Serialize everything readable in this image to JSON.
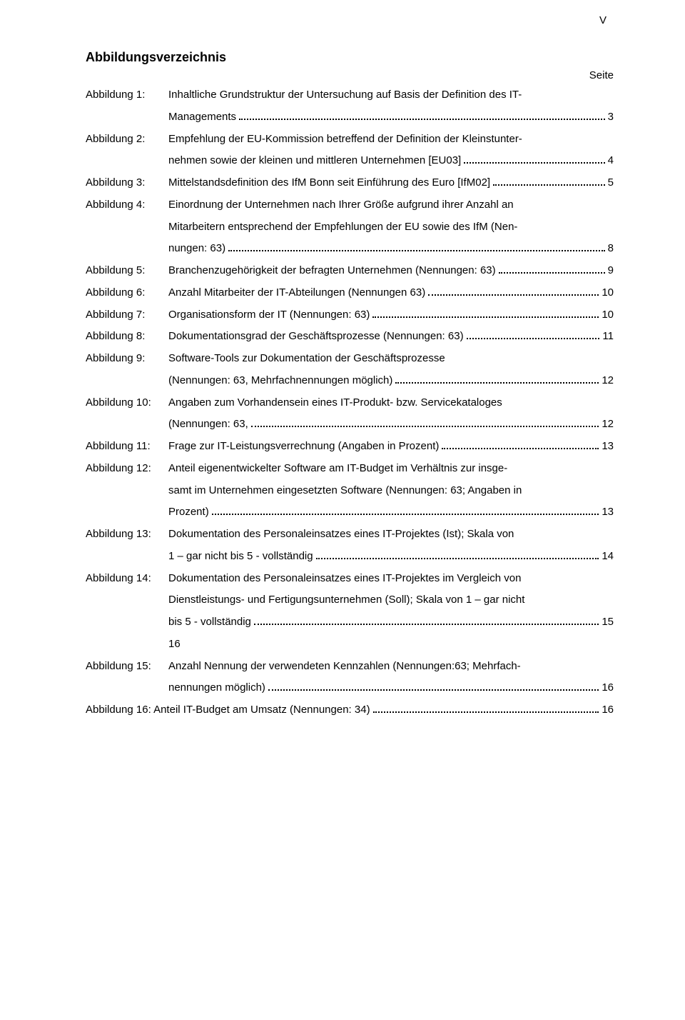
{
  "page_number_label": "V",
  "heading": "Abbildungsverzeichnis",
  "seite_label": "Seite",
  "entries": [
    {
      "label": "Abbildung 1:",
      "lines": [
        "Inhaltliche Grundstruktur der Untersuchung auf Basis der Definition des IT-"
      ],
      "last_text": "Managements",
      "page": "3"
    },
    {
      "label": "Abbildung 2:",
      "lines": [
        "Empfehlung der EU-Kommission betreffend der Definition der Kleinstunter-"
      ],
      "last_text": "nehmen sowie der kleinen und mittleren Unternehmen [EU03]",
      "page": "4"
    },
    {
      "label": "Abbildung 3:",
      "lines": [],
      "last_text": "Mittelstandsdefinition des IfM Bonn seit Einführung des Euro [IfM02]",
      "page": "5"
    },
    {
      "label": "Abbildung 4:",
      "lines": [
        "Einordnung der Unternehmen nach Ihrer Größe aufgrund ihrer Anzahl an",
        "Mitarbeitern entsprechend der Empfehlungen der EU sowie des IfM (Nen-"
      ],
      "last_text": "nungen: 63)",
      "page": "8"
    },
    {
      "label": "Abbildung 5:",
      "lines": [],
      "last_text": "Branchenzugehörigkeit der befragten Unternehmen (Nennungen: 63)",
      "page": "9"
    },
    {
      "label": "Abbildung 6:",
      "lines": [],
      "last_text": "Anzahl Mitarbeiter der IT-Abteilungen (Nennungen  63)",
      "page": "10"
    },
    {
      "label": "Abbildung 7:",
      "lines": [],
      "last_text": "Organisationsform der IT (Nennungen: 63)",
      "page": "10"
    },
    {
      "label": "Abbildung 8:",
      "lines": [],
      "last_text": "Dokumentationsgrad der Geschäftsprozesse (Nennungen: 63)",
      "page": "11"
    },
    {
      "label": "Abbildung 9:",
      "lines": [
        "Software-Tools zur Dokumentation der Geschäftsprozesse"
      ],
      "last_text": "(Nennungen: 63, Mehrfachnennungen möglich)",
      "page": "12"
    },
    {
      "label": "Abbildung 10:",
      "lines": [
        "Angaben zum Vorhandensein eines IT-Produkt- bzw. Servicekataloges"
      ],
      "last_text": "(Nennungen: 63,",
      "page": "12"
    },
    {
      "label": "Abbildung 11:",
      "lines": [],
      "last_text": "Frage zur IT-Leistungsverrechnung (Angaben in Prozent)",
      "page": "13"
    },
    {
      "label": "Abbildung 12:",
      "lines": [
        "Anteil eigenentwickelter Software am IT-Budget im Verhältnis zur insge-",
        "samt im Unternehmen eingesetzten Software (Nennungen: 63; Angaben in"
      ],
      "last_text": "Prozent)",
      "page": "13"
    },
    {
      "label": "Abbildung 13:",
      "lines": [
        "Dokumentation des Personaleinsatzes eines IT-Projektes (Ist); Skala von"
      ],
      "last_text": "1 – gar nicht bis 5 - vollständig",
      "page": "14"
    },
    {
      "label": "Abbildung 14:",
      "lines": [
        "Dokumentation des Personaleinsatzes eines IT-Projektes im Vergleich von",
        "Dienstleistungs- und Fertigungsunternehmen (Soll); Skala von 1 – gar nicht"
      ],
      "last_text": "bis 5 - vollständig",
      "page": "15",
      "trailing_lines": [
        "16"
      ]
    },
    {
      "label": "Abbildung 15:",
      "lines": [
        "Anzahl Nennung der verwendeten Kennzahlen (Nennungen:63; Mehrfach-"
      ],
      "last_text": "nennungen möglich)",
      "page": "16"
    }
  ],
  "final_entry": {
    "text": "Abbildung 16: Anteil IT-Budget am Umsatz (Nennungen: 34)",
    "page": "16"
  }
}
